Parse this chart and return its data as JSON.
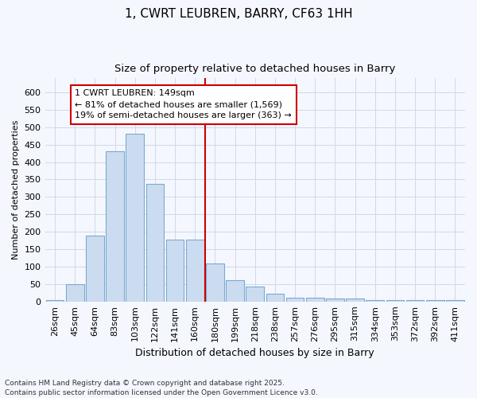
{
  "title_line1": "1, CWRT LEUBREN, BARRY, CF63 1HH",
  "title_line2": "Size of property relative to detached houses in Barry",
  "xlabel": "Distribution of detached houses by size in Barry",
  "ylabel": "Number of detached properties",
  "footnote": "Contains HM Land Registry data © Crown copyright and database right 2025.\nContains public sector information licensed under the Open Government Licence v3.0.",
  "bin_labels": [
    "26sqm",
    "45sqm",
    "64sqm",
    "83sqm",
    "103sqm",
    "122sqm",
    "141sqm",
    "160sqm",
    "180sqm",
    "199sqm",
    "218sqm",
    "238sqm",
    "257sqm",
    "276sqm",
    "295sqm",
    "315sqm",
    "334sqm",
    "353sqm",
    "372sqm",
    "392sqm",
    "411sqm"
  ],
  "bar_values": [
    5,
    50,
    190,
    430,
    480,
    338,
    178,
    178,
    108,
    62,
    43,
    23,
    11,
    11,
    8,
    8,
    5,
    5,
    3,
    5,
    3
  ],
  "bar_color": "#ccdcf0",
  "bar_edge_color": "#7aaad0",
  "grid_color": "#d0d8e8",
  "background_color": "#f5f7ff",
  "vline_color": "#cc0000",
  "annotation_text": "1 CWRT LEUBREN: 149sqm\n← 81% of detached houses are smaller (1,569)\n19% of semi-detached houses are larger (363) →",
  "annotation_box_color": "white",
  "annotation_box_edge": "#cc0000",
  "ylim": [
    0,
    640
  ],
  "yticks": [
    0,
    50,
    100,
    150,
    200,
    250,
    300,
    350,
    400,
    450,
    500,
    550,
    600
  ],
  "title_fontsize": 11,
  "subtitle_fontsize": 9.5,
  "xlabel_fontsize": 9,
  "ylabel_fontsize": 8,
  "tick_fontsize": 8,
  "annot_fontsize": 8,
  "footnote_fontsize": 6.5,
  "figsize": [
    6.0,
    5.0
  ],
  "dpi": 100
}
